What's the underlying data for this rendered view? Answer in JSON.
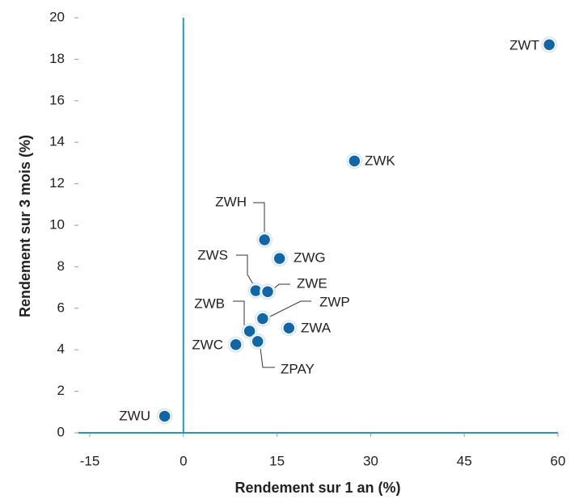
{
  "chart_data": {
    "type": "scatter",
    "xlabel": "Rendement sur 1 an (%)",
    "ylabel": "Rendement sur 3 mois (%)",
    "xlim": [
      -15,
      60
    ],
    "xticks": [
      -15,
      0,
      15,
      30,
      45,
      60
    ],
    "ylim": [
      0,
      20
    ],
    "yticks": [
      0,
      2,
      4,
      6,
      8,
      10,
      12,
      14,
      16,
      18,
      20
    ],
    "color": "#0f66a8",
    "axis_color": "#1e9cc0",
    "series": [
      {
        "labels": [
          "ZWT",
          "ZWK",
          "ZWH",
          "ZWG",
          "ZWS",
          "ZWE",
          "ZWP",
          "ZWA",
          "ZWB",
          "ZPAY",
          "ZWC",
          "ZWU"
        ],
        "x": [
          58.6,
          27.4,
          13.0,
          15.4,
          11.6,
          13.5,
          12.7,
          16.9,
          10.6,
          11.9,
          8.4,
          -3.0
        ],
        "values": [
          18.7,
          13.1,
          9.3,
          8.4,
          6.85,
          6.8,
          5.5,
          5.05,
          4.9,
          4.4,
          4.25,
          0.8
        ]
      }
    ]
  }
}
